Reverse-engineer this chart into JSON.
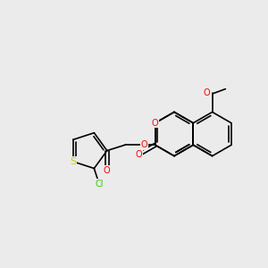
{
  "bg_color": "#ebebeb",
  "bond_color": "#000000",
  "O_color": "#ff0000",
  "S_color": "#cccc00",
  "Cl_color": "#33cc00",
  "font_size": 7.0,
  "lw": 1.2,
  "xlim": [
    0,
    10
  ],
  "ylim": [
    0,
    10
  ]
}
